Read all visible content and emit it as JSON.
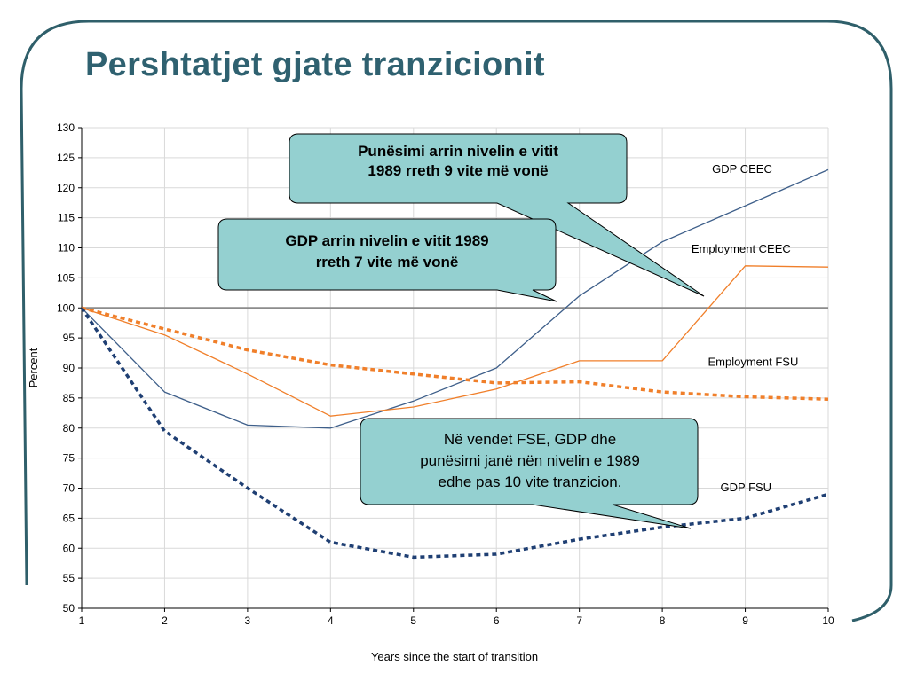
{
  "slide": {
    "title": "Pershtatjet gjate tranzicionit",
    "title_color": "#2f6170",
    "frame_color": "#2f5f6a"
  },
  "callouts": [
    {
      "text_lines": [
        "Punësimi arrin nivelin e vitit",
        "1989 rreth 9 vite më vonë"
      ],
      "fill": "#94d0d0"
    },
    {
      "text_lines": [
        "GDP arrin nivelin e vitit 1989",
        "rreth 7 vite më vonë"
      ],
      "fill": "#94d0d0"
    },
    {
      "text_lines": [
        "Në vendet FSE, GDP dhe",
        "punësimi janë nën nivelin e 1989",
        "edhe pas 10 vite tranzicion."
      ],
      "fill": "#94d0d0"
    }
  ],
  "chart_data": {
    "type": "line",
    "xlabel": "Years since the start of transition",
    "ylabel": "Percent",
    "x": [
      1,
      2,
      3,
      4,
      5,
      6,
      7,
      8,
      9,
      10
    ],
    "xlim": [
      1,
      10
    ],
    "ylim": [
      50,
      130
    ],
    "yticks": [
      50,
      55,
      60,
      65,
      70,
      75,
      80,
      85,
      90,
      95,
      100,
      105,
      110,
      115,
      120,
      125,
      130
    ],
    "reference_line": 100,
    "grid": true,
    "legend": "labels placed next to each line on the right",
    "series": [
      {
        "name": "GDP CEEC",
        "color": "#3e5f8a",
        "style": "solid",
        "width": 1.3,
        "values": [
          100,
          86,
          80.5,
          80,
          84.5,
          90,
          102,
          111,
          117,
          123
        ]
      },
      {
        "name": "Employment CEEC",
        "color": "#f07f2a",
        "style": "solid",
        "width": 1.3,
        "values": [
          100,
          95.5,
          89,
          82,
          83.5,
          86.5,
          91.2,
          91.2,
          107,
          106.8
        ]
      },
      {
        "name": "Employment FSU",
        "color": "#f07f2a",
        "style": "dotted",
        "width": 3.5,
        "values": [
          100,
          96.5,
          93,
          90.5,
          89,
          87.5,
          87.7,
          86,
          85.2,
          84.8
        ]
      },
      {
        "name": "GDP FSU",
        "color": "#1f3f73",
        "style": "dotted",
        "width": 3.5,
        "values": [
          100,
          79.5,
          70,
          61,
          58.5,
          59,
          61.5,
          63.5,
          65,
          69
        ]
      }
    ]
  }
}
